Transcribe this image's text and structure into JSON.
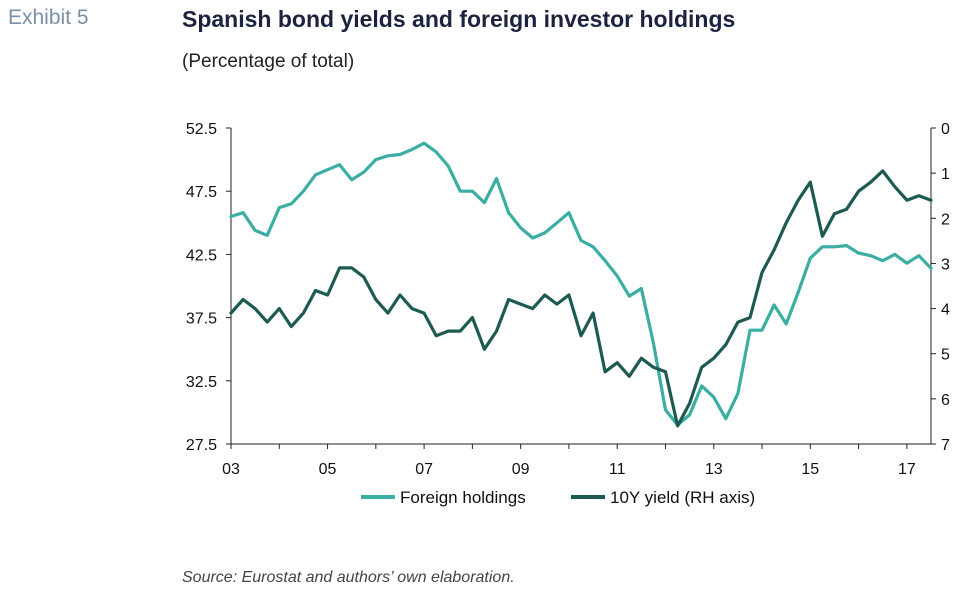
{
  "header": {
    "exhibit": "Exhibit 5",
    "title": "Spanish bond yields and foreign investor holdings",
    "subtitle": "(Percentage of total)"
  },
  "footer": {
    "source": "Source: Eurostat and authors’ own elaboration."
  },
  "colors": {
    "foreign_holdings": "#3aaea3",
    "yield_10y": "#1d5a52"
  },
  "chart_data": {
    "type": "line",
    "x_ticks": [
      "03",
      "05",
      "07",
      "09",
      "11",
      "13",
      "15",
      "17"
    ],
    "x_range": [
      2003,
      2017.5
    ],
    "y_left": {
      "range": [
        27.5,
        52.5
      ],
      "ticks": [
        "52.5",
        "47.5",
        "42.5",
        "37.5",
        "32.5",
        "27.5"
      ]
    },
    "y_right": {
      "range": [
        0,
        7
      ],
      "inverted": true,
      "ticks": [
        "0",
        "1",
        "2",
        "3",
        "4",
        "5",
        "6",
        "7"
      ]
    },
    "legend": [
      "Foreign holdings",
      "10Y yield (RH axis)"
    ],
    "series": [
      {
        "name": "Foreign holdings",
        "axis": "left",
        "x": [
          2003.0,
          2003.25,
          2003.5,
          2003.75,
          2004.0,
          2004.25,
          2004.5,
          2004.75,
          2005.0,
          2005.25,
          2005.5,
          2005.75,
          2006.0,
          2006.25,
          2006.5,
          2006.75,
          2007.0,
          2007.25,
          2007.5,
          2007.75,
          2008.0,
          2008.25,
          2008.5,
          2008.75,
          2009.0,
          2009.25,
          2009.5,
          2009.75,
          2010.0,
          2010.25,
          2010.5,
          2010.75,
          2011.0,
          2011.25,
          2011.5,
          2011.75,
          2012.0,
          2012.25,
          2012.5,
          2012.75,
          2013.0,
          2013.25,
          2013.5,
          2013.75,
          2014.0,
          2014.25,
          2014.5,
          2014.75,
          2015.0,
          2015.25,
          2015.5,
          2015.75,
          2016.0,
          2016.25,
          2016.5,
          2016.75,
          2017.0,
          2017.25,
          2017.5
        ],
        "values": [
          45.5,
          45.8,
          44.4,
          44.0,
          46.2,
          46.5,
          47.5,
          48.8,
          49.2,
          49.6,
          48.4,
          49.0,
          50.0,
          50.3,
          50.4,
          50.8,
          51.3,
          50.6,
          49.5,
          47.5,
          47.5,
          46.6,
          48.5,
          45.8,
          44.6,
          43.8,
          44.2,
          45.0,
          45.8,
          43.6,
          43.1,
          42.0,
          40.8,
          39.2,
          39.8,
          35.5,
          30.2,
          29.0,
          29.8,
          32.1,
          31.2,
          29.5,
          31.5,
          36.5,
          36.5,
          38.5,
          37.0,
          39.5,
          42.2,
          43.1,
          43.1,
          43.2,
          42.6,
          42.4,
          42.0,
          42.5,
          41.8,
          42.4,
          41.4
        ]
      },
      {
        "name": "10Y yield (RH axis)",
        "axis": "right",
        "x": [
          2003.0,
          2003.25,
          2003.5,
          2003.75,
          2004.0,
          2004.25,
          2004.5,
          2004.75,
          2005.0,
          2005.25,
          2005.5,
          2005.75,
          2006.0,
          2006.25,
          2006.5,
          2006.75,
          2007.0,
          2007.25,
          2007.5,
          2007.75,
          2008.0,
          2008.25,
          2008.5,
          2008.75,
          2009.0,
          2009.25,
          2009.5,
          2009.75,
          2010.0,
          2010.25,
          2010.5,
          2010.75,
          2011.0,
          2011.25,
          2011.5,
          2011.75,
          2012.0,
          2012.25,
          2012.5,
          2012.75,
          2013.0,
          2013.25,
          2013.5,
          2013.75,
          2014.0,
          2014.25,
          2014.5,
          2014.75,
          2015.0,
          2015.25,
          2015.5,
          2015.75,
          2016.0,
          2016.25,
          2016.5,
          2016.75,
          2017.0,
          2017.25,
          2017.5
        ],
        "values": [
          4.1,
          3.8,
          4.0,
          4.3,
          4.0,
          4.4,
          4.1,
          3.6,
          3.7,
          3.1,
          3.1,
          3.3,
          3.8,
          4.1,
          3.7,
          4.0,
          4.1,
          4.6,
          4.5,
          4.5,
          4.2,
          4.9,
          4.5,
          3.8,
          3.9,
          4.0,
          3.7,
          3.9,
          3.7,
          4.6,
          4.1,
          5.4,
          5.2,
          5.5,
          5.1,
          5.3,
          5.4,
          6.6,
          6.1,
          5.3,
          5.1,
          4.8,
          4.3,
          4.2,
          3.2,
          2.7,
          2.1,
          1.6,
          1.2,
          2.4,
          1.9,
          1.8,
          1.4,
          1.2,
          0.95,
          1.3,
          1.6,
          1.5,
          1.6
        ]
      }
    ]
  }
}
